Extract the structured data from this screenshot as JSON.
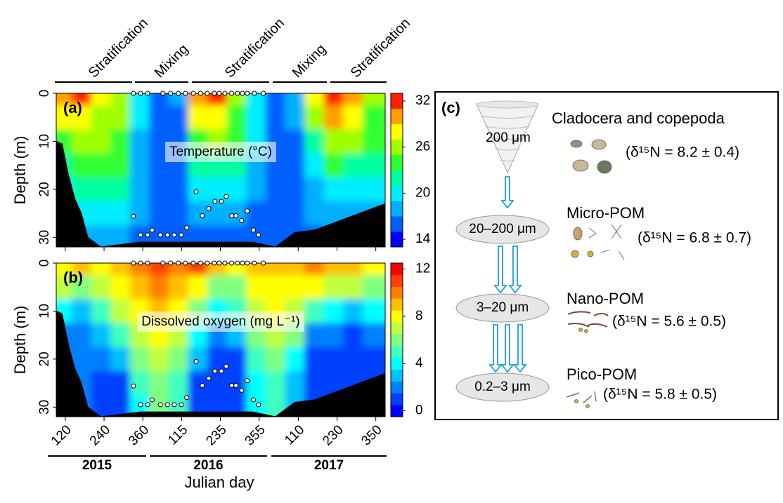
{
  "figure": {
    "phases": [
      "Stratification",
      "Mixing",
      "Stratification",
      "Mixing",
      "Stratification"
    ],
    "years": [
      "2015",
      "2016",
      "2017"
    ],
    "xlabel": "Julian day"
  },
  "chart_data": [
    {
      "type": "contour",
      "panel": "(a)",
      "annotation": "Temperature (°C)",
      "ylabel": "Depth (m)",
      "x": [
        110,
        170,
        230,
        290,
        350,
        410,
        470,
        530,
        590,
        650,
        710,
        770,
        830,
        890,
        950,
        1010,
        1070
      ],
      "depths": [
        0,
        5,
        10,
        15,
        20,
        25,
        30
      ],
      "z": [
        [
          29,
          31,
          27,
          25,
          19,
          16,
          17,
          30,
          31,
          25,
          20,
          16,
          17,
          28,
          32,
          29,
          25
        ],
        [
          27,
          28,
          26,
          25,
          19,
          16,
          16,
          27,
          28,
          24,
          19,
          16,
          17,
          25,
          29,
          27,
          24
        ],
        [
          24,
          25,
          25,
          24,
          18,
          16,
          16,
          24,
          25,
          23,
          19,
          16,
          16,
          22,
          26,
          25,
          23
        ],
        [
          22,
          23,
          23,
          23,
          18,
          15,
          16,
          21,
          22,
          21,
          18,
          15,
          16,
          20,
          23,
          22,
          21
        ],
        [
          20,
          21,
          21,
          22,
          17,
          15,
          15,
          19,
          20,
          19,
          17,
          15,
          16,
          18,
          20,
          20,
          19
        ],
        [
          19,
          19,
          19,
          20,
          17,
          15,
          15,
          17,
          18,
          17,
          16,
          15,
          15,
          17,
          18,
          18,
          18
        ],
        [
          18,
          18,
          17,
          18,
          16,
          15,
          15,
          16,
          16,
          16,
          16,
          15,
          15,
          16,
          17,
          17,
          17
        ]
      ],
      "xlim": [
        92,
        1110
      ],
      "ylim": [
        32,
        0
      ],
      "yticks": [
        0,
        10,
        20,
        30
      ],
      "clim": [
        13,
        33
      ],
      "cticks": [
        14,
        20,
        26,
        32
      ],
      "colormap": [
        "#0000ff",
        "#0060ff",
        "#00b0ff",
        "#00eeff",
        "#00ffa0",
        "#30ff30",
        "#a0ff00",
        "#ffff00",
        "#ffa000",
        "#ff2000"
      ],
      "bottom": {
        "x": [
          92,
          110,
          130,
          150,
          170,
          190,
          230,
          350,
          500,
          700,
          770,
          830,
          890,
          950,
          1010,
          1070,
          1110
        ],
        "depth": [
          10,
          10.5,
          17,
          22,
          25,
          30,
          32,
          31,
          31,
          31,
          32,
          29,
          28.5,
          27,
          25.5,
          24,
          23
        ]
      },
      "samples": {
        "x": [
          331,
          353,
          375,
          422,
          446,
          470,
          492,
          516,
          538,
          559,
          581,
          596,
          614,
          635,
          653,
          668,
          683,
          705,
          733,
          331,
          353,
          375,
          389,
          414,
          436,
          457,
          479,
          496,
          525,
          544,
          564,
          583,
          603,
          618,
          635,
          648,
          666,
          683,
          702,
          718
        ],
        "depth": [
          0,
          0,
          0,
          0,
          0,
          0,
          0,
          0,
          0,
          0,
          0,
          0,
          0,
          0,
          0,
          0,
          0,
          0,
          0,
          25.6,
          29.5,
          29.5,
          28.5,
          29.5,
          29.5,
          29.5,
          29.5,
          28,
          20.5,
          25.5,
          24,
          22.5,
          22.5,
          21.5,
          25.5,
          25.5,
          26.5,
          24.5,
          28.5,
          29.5
        ]
      }
    },
    {
      "type": "contour",
      "panel": "(b)",
      "annotation": "Dissolved oxygen (mg L⁻¹)",
      "ylabel": "Depth (m)",
      "x": [
        110,
        170,
        230,
        290,
        350,
        410,
        470,
        530,
        590,
        650,
        710,
        770,
        830,
        890,
        950,
        1010,
        1070
      ],
      "depths": [
        0,
        5,
        10,
        15,
        20,
        25,
        30
      ],
      "z": [
        [
          8,
          9,
          8,
          9,
          10,
          11,
          10,
          11,
          9,
          8,
          9,
          9,
          9,
          10,
          9,
          9,
          8
        ],
        [
          7,
          6,
          7,
          8,
          9,
          10,
          9,
          8,
          6,
          6,
          8,
          8,
          8,
          8,
          7,
          7,
          6
        ],
        [
          4,
          3,
          5,
          7,
          8,
          9,
          8,
          6,
          4,
          5,
          7,
          8,
          7,
          5,
          4,
          3,
          4
        ],
        [
          2,
          2,
          3,
          5,
          7,
          8,
          7,
          4,
          2,
          3,
          6,
          7,
          6,
          2,
          2,
          1,
          2
        ],
        [
          2,
          2,
          2,
          3,
          6,
          7,
          6,
          3,
          1,
          1,
          5,
          6,
          4,
          1,
          1,
          1,
          1
        ],
        [
          2,
          2,
          1,
          1,
          5,
          6,
          5,
          1,
          1,
          1,
          4,
          5,
          3,
          1,
          1,
          1,
          1
        ],
        [
          2,
          2,
          1,
          1,
          4,
          6,
          5,
          1,
          1,
          1,
          4,
          5,
          3,
          1,
          1,
          1,
          1
        ]
      ],
      "xlim": [
        92,
        1110
      ],
      "ylim": [
        32,
        0
      ],
      "yticks": [
        0,
        10,
        20,
        30
      ],
      "xticks": [
        120,
        240,
        360,
        {
          "value": 480,
          "label": "115"
        },
        {
          "value": 600,
          "label": "235"
        },
        {
          "value": 720,
          "label": "355"
        },
        {
          "value": 841,
          "label": "110"
        },
        {
          "value": 961,
          "label": "230"
        },
        {
          "value": 1081,
          "label": "350"
        }
      ],
      "clim": [
        -0.5,
        12.5
      ],
      "cticks": [
        0,
        4,
        8,
        12
      ],
      "colormap": [
        "#0000ff",
        "#0040ff",
        "#0080ff",
        "#00c0ff",
        "#00ffff",
        "#40ffc0",
        "#80ff80",
        "#c0ff40",
        "#ffff00",
        "#ffc000",
        "#ff8000",
        "#ff4000",
        "#ff0000"
      ],
      "bottom": {
        "x": [
          92,
          110,
          130,
          150,
          170,
          190,
          230,
          350,
          500,
          700,
          770,
          830,
          890,
          950,
          1010,
          1070,
          1110
        ],
        "depth": [
          10,
          10.5,
          17,
          22,
          25,
          30,
          32,
          31,
          31,
          31,
          32,
          29,
          28.5,
          27,
          25.5,
          24,
          23
        ]
      },
      "samples": {
        "x": [
          331,
          353,
          375,
          422,
          446,
          470,
          492,
          516,
          538,
          559,
          581,
          596,
          614,
          635,
          653,
          668,
          683,
          705,
          733,
          331,
          353,
          375,
          389,
          414,
          436,
          457,
          479,
          496,
          525,
          544,
          564,
          583,
          603,
          618,
          635,
          648,
          666,
          683,
          702,
          718
        ],
        "depth": [
          0,
          0,
          0,
          0,
          0,
          0,
          0,
          0,
          0,
          0,
          0,
          0,
          0,
          0,
          0,
          0,
          0,
          0,
          0,
          25.6,
          29.5,
          29.5,
          28.5,
          29.5,
          29.5,
          29.5,
          29.5,
          28,
          20.5,
          25.5,
          24,
          22.5,
          22.5,
          21.5,
          25.5,
          25.5,
          26.5,
          24.5,
          28.5,
          29.5
        ]
      }
    }
  ],
  "diagram": {
    "label": "(c)",
    "nodes": [
      {
        "size": "200 μm",
        "name": "Cladocera and copepoda",
        "isotope": "(δ¹⁵N = 8.2 ± 0.4)"
      },
      {
        "size": "20–200 μm",
        "name": "Micro-POM",
        "isotope": "(δ¹⁵N = 6.8 ± 0.7)"
      },
      {
        "size": "3–20 μm",
        "name": "Nano-POM",
        "isotope": "(δ¹⁵N = 5.6 ± 0.5)"
      },
      {
        "size": "0.2–3 μm",
        "name": "Pico-POM",
        "isotope": "(δ¹⁵N = 5.8 ± 0.5)"
      }
    ]
  }
}
